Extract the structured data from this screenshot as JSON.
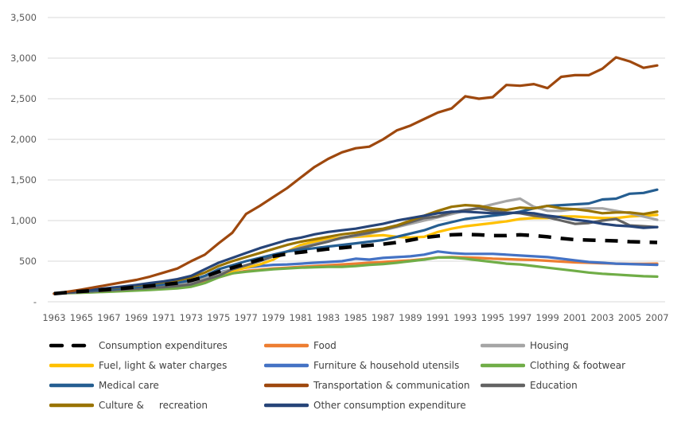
{
  "chart_data": {
    "type": "line",
    "title": "",
    "xlabel": "",
    "ylabel": "",
    "ylim": [
      0,
      3500
    ],
    "yticks": [
      0,
      500,
      1000,
      1500,
      2000,
      2500,
      3000,
      3500
    ],
    "ytick_labels": [
      "-",
      "500",
      "1,000",
      "1,500",
      "2,000",
      "2,500",
      "3,000",
      "3,500"
    ],
    "xtick_labels": [
      "1963",
      "1965",
      "1967",
      "1969",
      "1971",
      "1973",
      "1975",
      "1977",
      "1979",
      "1981",
      "1983",
      "1985",
      "1987",
      "1989",
      "1991",
      "1993",
      "1995",
      "1997",
      "1999",
      "2001",
      "2003",
      "2005",
      "2007"
    ],
    "grid": true,
    "legend_position": "bottom",
    "x": [
      1963,
      1964,
      1965,
      1966,
      1967,
      1968,
      1969,
      1970,
      1971,
      1972,
      1973,
      1974,
      1975,
      1976,
      1977,
      1978,
      1979,
      1980,
      1981,
      1982,
      1983,
      1984,
      1985,
      1986,
      1987,
      1988,
      1989,
      1990,
      1991,
      1992,
      1993,
      1994,
      1995,
      1996,
      1997,
      1998,
      1999,
      2000,
      2001,
      2002,
      2003,
      2004,
      2005,
      2006,
      2007
    ],
    "series": [
      {
        "name": "Consumption expenditures",
        "color": "#000000",
        "dashed": true,
        "values": [
          100,
          115,
          128,
          140,
          152,
          166,
          180,
          195,
          212,
          230,
          262,
          310,
          370,
          420,
          470,
          520,
          560,
          590,
          610,
          630,
          650,
          665,
          680,
          695,
          710,
          730,
          760,
          790,
          810,
          825,
          830,
          825,
          815,
          815,
          825,
          815,
          800,
          780,
          765,
          760,
          755,
          750,
          740,
          735,
          730
        ]
      },
      {
        "name": "Food",
        "color": "#ED7D31",
        "values": [
          100,
          110,
          118,
          125,
          132,
          140,
          148,
          156,
          165,
          175,
          195,
          240,
          300,
          350,
          380,
          395,
          410,
          420,
          430,
          440,
          450,
          460,
          470,
          480,
          490,
          500,
          510,
          525,
          545,
          550,
          545,
          540,
          530,
          525,
          520,
          515,
          505,
          495,
          485,
          480,
          475,
          470,
          468,
          468,
          470
        ]
      },
      {
        "name": "Housing",
        "color": "#A5A5A5",
        "values": [
          100,
          112,
          122,
          132,
          142,
          152,
          165,
          180,
          195,
          212,
          240,
          290,
          350,
          400,
          450,
          500,
          560,
          620,
          670,
          710,
          750,
          780,
          810,
          840,
          880,
          920,
          960,
          1000,
          1040,
          1080,
          1120,
          1160,
          1200,
          1240,
          1270,
          1170,
          1120,
          1120,
          1140,
          1150,
          1150,
          1120,
          1090,
          1050,
          1010
        ]
      },
      {
        "name": "Fuel, light & water charges",
        "color": "#FFC000",
        "values": [
          100,
          110,
          120,
          130,
          140,
          150,
          162,
          176,
          190,
          205,
          230,
          280,
          330,
          380,
          420,
          460,
          520,
          620,
          700,
          740,
          770,
          790,
          800,
          810,
          820,
          800,
          790,
          800,
          860,
          900,
          930,
          950,
          970,
          990,
          1020,
          1030,
          1030,
          1050,
          1050,
          1040,
          1030,
          1030,
          1050,
          1060,
          1070
        ]
      },
      {
        "name": "Furniture & household utensils",
        "color": "#4472C4",
        "values": [
          100,
          112,
          122,
          132,
          142,
          152,
          165,
          180,
          196,
          214,
          245,
          300,
          360,
          400,
          420,
          440,
          455,
          460,
          470,
          480,
          490,
          500,
          530,
          520,
          540,
          550,
          560,
          580,
          620,
          600,
          590,
          590,
          590,
          580,
          570,
          560,
          550,
          530,
          510,
          490,
          480,
          470,
          465,
          460,
          455
        ]
      },
      {
        "name": "Clothing & footwear",
        "color": "#70AD47",
        "values": [
          100,
          106,
          112,
          118,
          124,
          130,
          138,
          146,
          155,
          166,
          185,
          230,
          300,
          350,
          370,
          385,
          400,
          410,
          420,
          425,
          430,
          430,
          440,
          455,
          465,
          480,
          500,
          520,
          545,
          545,
          530,
          510,
          490,
          470,
          460,
          440,
          420,
          400,
          380,
          360,
          345,
          335,
          325,
          315,
          310
        ]
      },
      {
        "name": "Medical care",
        "color": "#255E91",
        "values": [
          100,
          115,
          128,
          140,
          152,
          166,
          180,
          196,
          214,
          234,
          265,
          320,
          400,
          450,
          500,
          540,
          580,
          620,
          640,
          660,
          680,
          700,
          720,
          740,
          760,
          800,
          840,
          880,
          940,
          980,
          1020,
          1040,
          1060,
          1080,
          1110,
          1150,
          1180,
          1190,
          1200,
          1210,
          1260,
          1270,
          1330,
          1340,
          1380
        ]
      },
      {
        "name": "Transportation & communication",
        "color": "#9E480E",
        "values": [
          100,
          125,
          150,
          180,
          210,
          240,
          270,
          310,
          360,
          410,
          500,
          580,
          720,
          850,
          1080,
          1180,
          1290,
          1400,
          1530,
          1660,
          1760,
          1840,
          1890,
          1910,
          2000,
          2110,
          2170,
          2250,
          2330,
          2380,
          2530,
          2500,
          2520,
          2670,
          2660,
          2680,
          2630,
          2770,
          2790,
          2790,
          2870,
          3010,
          2960,
          2880,
          2910
        ]
      },
      {
        "name": "Education",
        "color": "#636363",
        "values": [
          100,
          110,
          120,
          130,
          140,
          150,
          160,
          170,
          180,
          195,
          215,
          270,
          320,
          400,
          450,
          500,
          560,
          620,
          660,
          700,
          740,
          790,
          820,
          850,
          890,
          930,
          980,
          1030,
          1050,
          1100,
          1130,
          1150,
          1120,
          1100,
          1090,
          1060,
          1040,
          1000,
          960,
          970,
          1000,
          1020,
          940,
          930,
          920
        ]
      },
      {
        "name": "Culture & \trecreation",
        "color": "#997300",
        "values": [
          100,
          118,
          134,
          150,
          166,
          182,
          200,
          220,
          242,
          265,
          300,
          360,
          440,
          500,
          550,
          600,
          650,
          700,
          740,
          770,
          800,
          830,
          850,
          880,
          900,
          940,
          1000,
          1060,
          1120,
          1170,
          1190,
          1180,
          1150,
          1130,
          1160,
          1150,
          1180,
          1150,
          1140,
          1120,
          1090,
          1100,
          1100,
          1080,
          1110
        ]
      },
      {
        "name": "Other consumption expenditure",
        "color": "#264478",
        "values": [
          100,
          118,
          135,
          152,
          170,
          188,
          208,
          230,
          252,
          278,
          320,
          400,
          480,
          540,
          600,
          660,
          710,
          760,
          790,
          830,
          860,
          880,
          900,
          930,
          960,
          1000,
          1030,
          1060,
          1090,
          1110,
          1110,
          1100,
          1090,
          1090,
          1100,
          1090,
          1060,
          1040,
          1010,
          990,
          960,
          940,
          930,
          910,
          920
        ]
      }
    ]
  }
}
